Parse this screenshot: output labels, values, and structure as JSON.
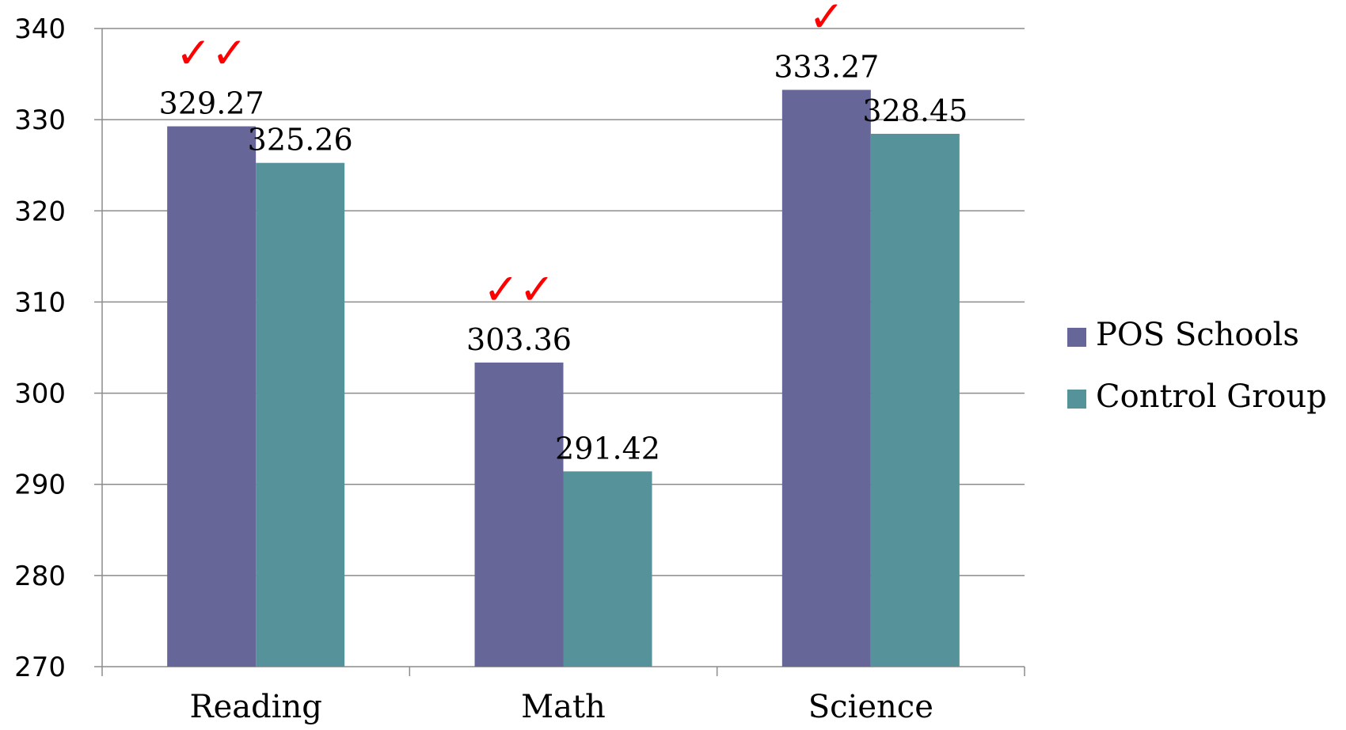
{
  "chart_data": {
    "type": "bar",
    "categories": [
      "Reading",
      "Math",
      "Science"
    ],
    "series": [
      {
        "name": "POS Schools",
        "values": [
          329.27,
          303.36,
          333.27
        ],
        "color": "#666699"
      },
      {
        "name": "Control Group",
        "values": [
          325.26,
          291.42,
          328.45
        ],
        "color": "#559299"
      }
    ],
    "data_labels": [
      [
        "329.27",
        "303.36",
        "333.27"
      ],
      [
        "325.26",
        "291.42",
        "328.45"
      ]
    ],
    "check_marks": [
      "✓✓",
      "✓✓",
      "✓"
    ],
    "check_color": "#ff0000",
    "ylim": [
      270,
      340
    ],
    "yticks": [
      "270",
      "280",
      "290",
      "300",
      "310",
      "320",
      "330",
      "340"
    ],
    "grid": true,
    "legend_position": "right",
    "title": "",
    "xlabel": "",
    "ylabel": ""
  }
}
